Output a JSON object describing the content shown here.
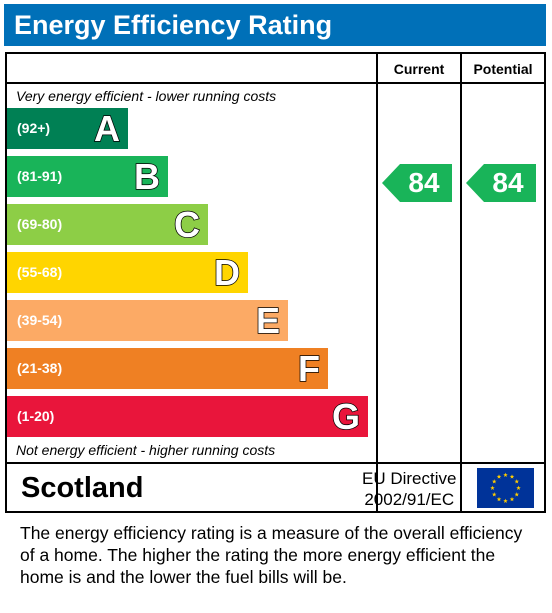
{
  "header": {
    "title": "Energy Efficiency Rating"
  },
  "columns": {
    "current": "Current",
    "potential": "Potential"
  },
  "captions": {
    "top": "Very energy efficient - lower running costs",
    "bottom": "Not energy efficient - higher running costs"
  },
  "footer": {
    "country": "Scotland",
    "directive_line1": "EU Directive",
    "directive_line2": "2002/91/EC"
  },
  "description": "The energy efficiency rating is a measure of the overall efficiency of a home.  The higher the rating the more energy efficient the home is and the lower the fuel bills will be.",
  "chart_data": {
    "type": "bar",
    "title": "Energy Efficiency Rating",
    "bands": [
      {
        "letter": "A",
        "range": "(92+)",
        "color": "#008054"
      },
      {
        "letter": "B",
        "range": "(81-91)",
        "color": "#19b459"
      },
      {
        "letter": "C",
        "range": "(69-80)",
        "color": "#8dce46"
      },
      {
        "letter": "D",
        "range": "(55-68)",
        "color": "#ffd500"
      },
      {
        "letter": "E",
        "range": "(39-54)",
        "color": "#fcaa65"
      },
      {
        "letter": "F",
        "range": "(21-38)",
        "color": "#ef8023"
      },
      {
        "letter": "G",
        "range": "(1-20)",
        "color": "#e9153b"
      }
    ],
    "current": {
      "value": 84,
      "band": "B",
      "color": "#19b459"
    },
    "potential": {
      "value": 84,
      "band": "B",
      "color": "#19b459"
    }
  },
  "colors": {
    "header": "#0070b8",
    "eu_flag": "#003399",
    "eu_star": "#ffcc00"
  },
  "icons": {
    "flag": "eu-flag-icon"
  }
}
